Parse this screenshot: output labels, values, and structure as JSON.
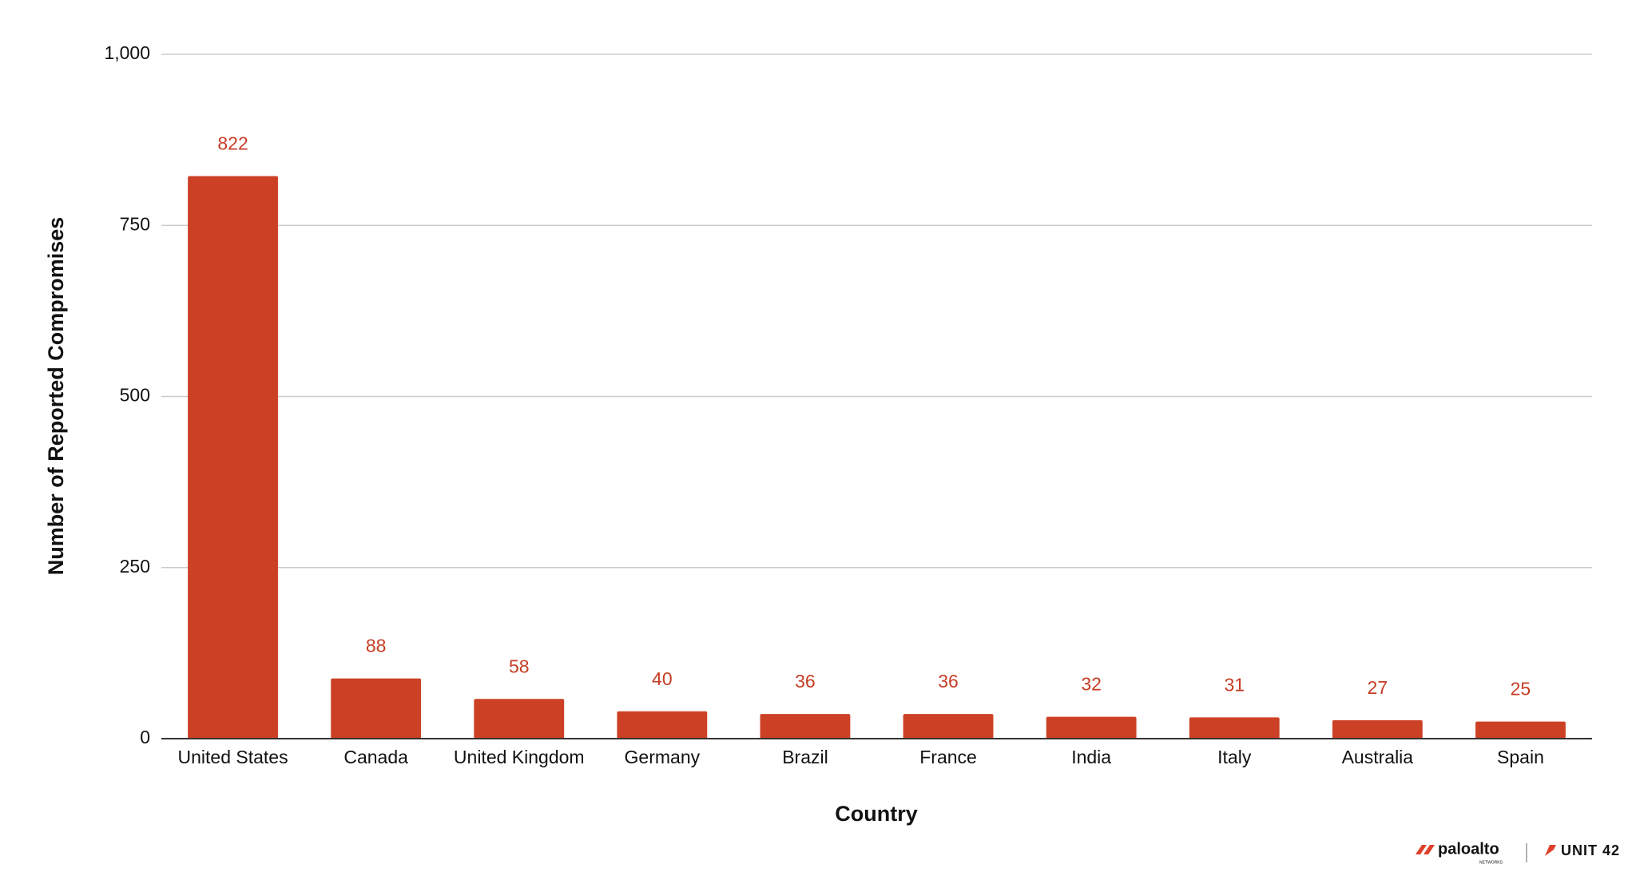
{
  "chart_data": {
    "type": "bar",
    "x_label": "Country",
    "y_label": "Number of Reported Compromises",
    "categories": [
      "United States",
      "Canada",
      "United Kingdom",
      "Germany",
      "Brazil",
      "France",
      "India",
      "Italy",
      "Australia",
      "Spain"
    ],
    "values": [
      822,
      88,
      58,
      40,
      36,
      36,
      32,
      31,
      27,
      25
    ],
    "color": "#cc4125",
    "ylim": [
      0,
      1000
    ],
    "yticks": [
      0,
      250,
      500,
      750,
      {
        "value": 1000,
        "label": "1,000"
      }
    ],
    "grid": true
  },
  "brand": {
    "company": "paloalto",
    "company_sub": "NETWORKS",
    "unit": "UNIT 42"
  }
}
